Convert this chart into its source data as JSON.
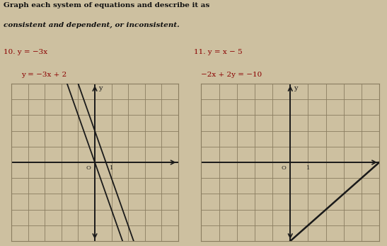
{
  "title_line1": "Graph each system of equations and describe it as",
  "title_line2": "consistent and dependent, or inconsistent.",
  "problem10_label": "10.",
  "problem10_eq1": "y = −3x",
  "problem10_eq2": "y = −3x + 2",
  "problem11_label": "11.",
  "problem11_eq1": "y = x − 5",
  "problem11_eq2": "−2x + 2y = −10",
  "bg_color": "#cdc0a0",
  "grid_color": "#8a7d60",
  "axis_color": "#1a1a1a",
  "line_color": "#1a1a1a",
  "text_color": "#111111",
  "label_color": "#8B0000",
  "grid_nx": 10,
  "grid_ny": 10,
  "xlim": [
    -5,
    5
  ],
  "ylim": [
    -5,
    5
  ]
}
